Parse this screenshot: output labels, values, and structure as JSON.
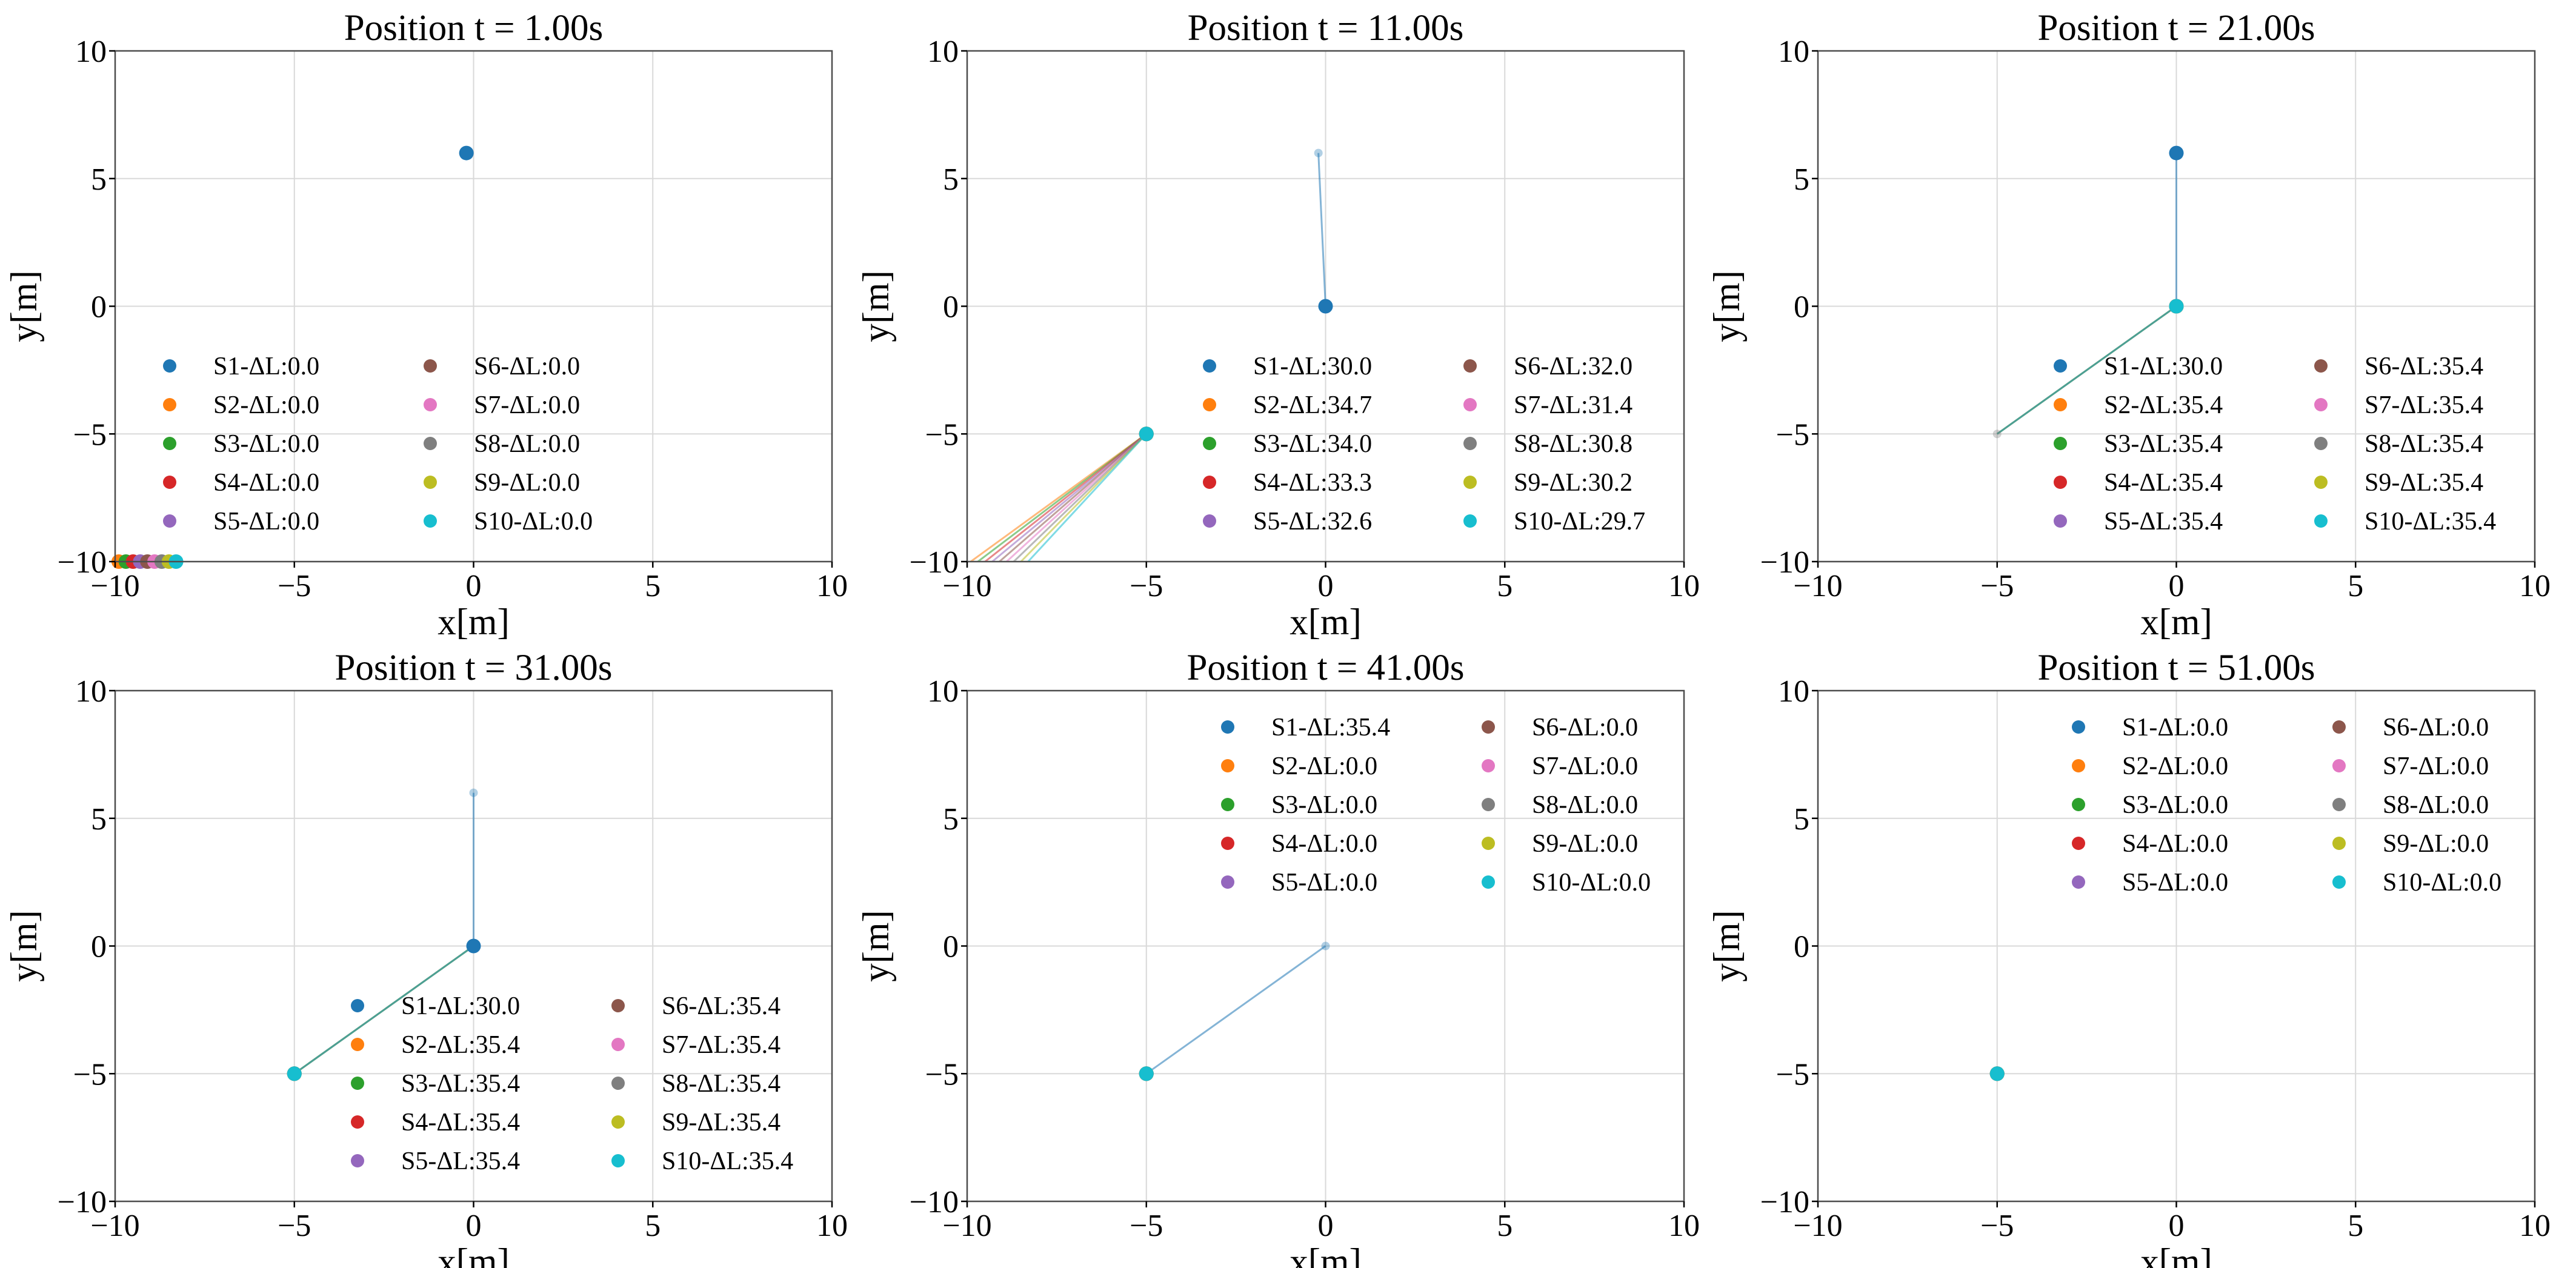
{
  "chart_data": [
    {
      "type": "scatter",
      "title": "Position t = 1.00s",
      "xlabel": "x[m]",
      "ylabel": "y[m]",
      "xlim": [
        -10,
        10
      ],
      "ylim": [
        -10,
        10
      ],
      "xticks": [
        -10,
        -5,
        0,
        5,
        10
      ],
      "yticks": [
        -10,
        -5,
        0,
        5,
        10
      ],
      "grid": true,
      "legend_position": "lower-left",
      "legend": [
        "S1-ΔL:0.0",
        "S2-ΔL:0.0",
        "S3-ΔL:0.0",
        "S4-ΔL:0.0",
        "S5-ΔL:0.0",
        "S6-ΔL:0.0",
        "S7-ΔL:0.0",
        "S8-ΔL:0.0",
        "S9-ΔL:0.0",
        "S10-ΔL:0.0"
      ],
      "points": [
        {
          "s": 1,
          "x": -0.2,
          "y": 6
        },
        {
          "s": 2,
          "x": -9.9,
          "y": -10
        },
        {
          "s": 3,
          "x": -9.7,
          "y": -10
        },
        {
          "s": 4,
          "x": -9.5,
          "y": -10
        },
        {
          "s": 5,
          "x": -9.3,
          "y": -10
        },
        {
          "s": 6,
          "x": -9.1,
          "y": -10
        },
        {
          "s": 7,
          "x": -8.9,
          "y": -10
        },
        {
          "s": 8,
          "x": -8.7,
          "y": -10
        },
        {
          "s": 9,
          "x": -8.5,
          "y": -10
        },
        {
          "s": 10,
          "x": -8.3,
          "y": -10
        }
      ],
      "segments": []
    },
    {
      "type": "scatter",
      "title": "Position t = 11.00s",
      "xlabel": "x[m]",
      "ylabel": "y[m]",
      "xlim": [
        -10,
        10
      ],
      "ylim": [
        -10,
        10
      ],
      "xticks": [
        -10,
        -5,
        0,
        5,
        10
      ],
      "yticks": [
        -10,
        -5,
        0,
        5,
        10
      ],
      "grid": true,
      "legend_position": "lower-right",
      "legend": [
        "S1-ΔL:30.0",
        "S2-ΔL:34.7",
        "S3-ΔL:34.0",
        "S4-ΔL:33.3",
        "S5-ΔL:32.6",
        "S6-ΔL:32.0",
        "S7-ΔL:31.4",
        "S8-ΔL:30.8",
        "S9-ΔL:30.2",
        "S10-ΔL:29.7"
      ],
      "points": [
        {
          "s": 1,
          "x": 0,
          "y": 0
        },
        {
          "s": 2,
          "x": -5,
          "y": -5
        },
        {
          "s": 3,
          "x": -5,
          "y": -5
        },
        {
          "s": 4,
          "x": -5,
          "y": -5
        },
        {
          "s": 5,
          "x": -5,
          "y": -5
        },
        {
          "s": 6,
          "x": -5,
          "y": -5
        },
        {
          "s": 7,
          "x": -5,
          "y": -5
        },
        {
          "s": 8,
          "x": -5,
          "y": -5
        },
        {
          "s": 9,
          "x": -5,
          "y": -5
        },
        {
          "s": 10,
          "x": -5,
          "y": -5
        }
      ],
      "ghost_points": [
        {
          "s": 1,
          "x": -0.2,
          "y": 6
        }
      ],
      "segments": [
        {
          "s": 1,
          "x1": -0.2,
          "y1": 6,
          "x2": 0,
          "y2": 0
        },
        {
          "s": 2,
          "x1": -9.9,
          "y1": -10,
          "x2": -5,
          "y2": -5
        },
        {
          "s": 3,
          "x1": -9.7,
          "y1": -10,
          "x2": -5,
          "y2": -5
        },
        {
          "s": 4,
          "x1": -9.5,
          "y1": -10,
          "x2": -5,
          "y2": -5
        },
        {
          "s": 5,
          "x1": -9.3,
          "y1": -10,
          "x2": -5,
          "y2": -5
        },
        {
          "s": 6,
          "x1": -9.1,
          "y1": -10,
          "x2": -5,
          "y2": -5
        },
        {
          "s": 7,
          "x1": -8.9,
          "y1": -10,
          "x2": -5,
          "y2": -5
        },
        {
          "s": 8,
          "x1": -8.7,
          "y1": -10,
          "x2": -5,
          "y2": -5
        },
        {
          "s": 9,
          "x1": -8.5,
          "y1": -10,
          "x2": -5,
          "y2": -5
        },
        {
          "s": 10,
          "x1": -8.3,
          "y1": -10,
          "x2": -5,
          "y2": -5
        }
      ]
    },
    {
      "type": "scatter",
      "title": "Position t = 21.00s",
      "xlabel": "x[m]",
      "ylabel": "y[m]",
      "xlim": [
        -10,
        10
      ],
      "ylim": [
        -10,
        10
      ],
      "xticks": [
        -10,
        -5,
        0,
        5,
        10
      ],
      "yticks": [
        -10,
        -5,
        0,
        5,
        10
      ],
      "grid": true,
      "legend_position": "lower-right",
      "legend": [
        "S1-ΔL:30.0",
        "S2-ΔL:35.4",
        "S3-ΔL:35.4",
        "S4-ΔL:35.4",
        "S5-ΔL:35.4",
        "S6-ΔL:35.4",
        "S7-ΔL:35.4",
        "S8-ΔL:35.4",
        "S9-ΔL:35.4",
        "S10-ΔL:35.4"
      ],
      "points": [
        {
          "s": 1,
          "x": 0,
          "y": 6
        },
        {
          "s": 2,
          "x": 0,
          "y": 0
        },
        {
          "s": 3,
          "x": 0,
          "y": 0
        },
        {
          "s": 4,
          "x": 0,
          "y": 0
        },
        {
          "s": 5,
          "x": 0,
          "y": 0
        },
        {
          "s": 6,
          "x": 0,
          "y": 0
        },
        {
          "s": 7,
          "x": 0,
          "y": 0
        },
        {
          "s": 8,
          "x": 0,
          "y": 0
        },
        {
          "s": 9,
          "x": 0,
          "y": 0
        },
        {
          "s": 10,
          "x": 0,
          "y": 0
        }
      ],
      "ghost_points": [
        {
          "s": 8,
          "x": -5,
          "y": -5
        }
      ],
      "segments": [
        {
          "s": 1,
          "x1": 0,
          "y1": 0,
          "x2": 0,
          "y2": 6
        },
        {
          "s": 2,
          "x1": -5,
          "y1": -5,
          "x2": 0,
          "y2": 0
        },
        {
          "s": 3,
          "x1": -5,
          "y1": -5,
          "x2": 0,
          "y2": 0
        },
        {
          "s": 6,
          "x1": -5,
          "y1": -5,
          "x2": 0,
          "y2": 0
        },
        {
          "s": 10,
          "x1": -5,
          "y1": -5,
          "x2": 0,
          "y2": 0
        }
      ]
    },
    {
      "type": "scatter",
      "title": "Position t = 31.00s",
      "xlabel": "x[m]",
      "ylabel": "y[m]",
      "xlim": [
        -10,
        10
      ],
      "ylim": [
        -10,
        10
      ],
      "xticks": [
        -10,
        -5,
        0,
        5,
        10
      ],
      "yticks": [
        -10,
        -5,
        0,
        5,
        10
      ],
      "grid": true,
      "legend_position": "lower-right",
      "legend": [
        "S1-ΔL:30.0",
        "S2-ΔL:35.4",
        "S3-ΔL:35.4",
        "S4-ΔL:35.4",
        "S5-ΔL:35.4",
        "S6-ΔL:35.4",
        "S7-ΔL:35.4",
        "S8-ΔL:35.4",
        "S9-ΔL:35.4",
        "S10-ΔL:35.4"
      ],
      "points": [
        {
          "s": 1,
          "x": 0,
          "y": 0
        },
        {
          "s": 2,
          "x": -5,
          "y": -5
        },
        {
          "s": 3,
          "x": -5,
          "y": -5
        },
        {
          "s": 4,
          "x": -5,
          "y": -5
        },
        {
          "s": 5,
          "x": -5,
          "y": -5
        },
        {
          "s": 6,
          "x": -5,
          "y": -5
        },
        {
          "s": 7,
          "x": -5,
          "y": -5
        },
        {
          "s": 8,
          "x": -5,
          "y": -5
        },
        {
          "s": 9,
          "x": -5,
          "y": -5
        },
        {
          "s": 10,
          "x": -5,
          "y": -5
        }
      ],
      "ghost_points": [
        {
          "s": 1,
          "x": 0,
          "y": 6
        }
      ],
      "segments": [
        {
          "s": 1,
          "x1": 0,
          "y1": 6,
          "x2": 0,
          "y2": 0
        },
        {
          "s": 2,
          "x1": 0,
          "y1": 0,
          "x2": -5,
          "y2": -5
        },
        {
          "s": 3,
          "x1": 0,
          "y1": 0,
          "x2": -5,
          "y2": -5
        },
        {
          "s": 6,
          "x1": 0,
          "y1": 0,
          "x2": -5,
          "y2": -5
        },
        {
          "s": 10,
          "x1": 0,
          "y1": 0,
          "x2": -5,
          "y2": -5
        }
      ]
    },
    {
      "type": "scatter",
      "title": "Position t = 41.00s",
      "xlabel": "x[m]",
      "ylabel": "y[m]",
      "xlim": [
        -10,
        10
      ],
      "ylim": [
        -10,
        10
      ],
      "xticks": [
        -10,
        -5,
        0,
        5,
        10
      ],
      "yticks": [
        -10,
        -5,
        0,
        5,
        10
      ],
      "grid": true,
      "legend_position": "upper-right",
      "legend": [
        "S1-ΔL:35.4",
        "S2-ΔL:0.0",
        "S3-ΔL:0.0",
        "S4-ΔL:0.0",
        "S5-ΔL:0.0",
        "S6-ΔL:0.0",
        "S7-ΔL:0.0",
        "S8-ΔL:0.0",
        "S9-ΔL:0.0",
        "S10-ΔL:0.0"
      ],
      "points": [
        {
          "s": 1,
          "x": -5,
          "y": -5
        },
        {
          "s": 2,
          "x": -5,
          "y": -5
        },
        {
          "s": 3,
          "x": -5,
          "y": -5
        },
        {
          "s": 4,
          "x": -5,
          "y": -5
        },
        {
          "s": 5,
          "x": -5,
          "y": -5
        },
        {
          "s": 6,
          "x": -5,
          "y": -5
        },
        {
          "s": 7,
          "x": -5,
          "y": -5
        },
        {
          "s": 8,
          "x": -5,
          "y": -5
        },
        {
          "s": 9,
          "x": -5,
          "y": -5
        },
        {
          "s": 10,
          "x": -5,
          "y": -5
        }
      ],
      "ghost_points": [
        {
          "s": 1,
          "x": 0,
          "y": 0
        }
      ],
      "segments": [
        {
          "s": 1,
          "x1": 0,
          "y1": 0,
          "x2": -5,
          "y2": -5
        }
      ]
    },
    {
      "type": "scatter",
      "title": "Position t = 51.00s",
      "xlabel": "x[m]",
      "ylabel": "y[m]",
      "xlim": [
        -10,
        10
      ],
      "ylim": [
        -10,
        10
      ],
      "xticks": [
        -10,
        -5,
        0,
        5,
        10
      ],
      "yticks": [
        -10,
        -5,
        0,
        5,
        10
      ],
      "grid": true,
      "legend_position": "upper-right",
      "legend": [
        "S1-ΔL:0.0",
        "S2-ΔL:0.0",
        "S3-ΔL:0.0",
        "S4-ΔL:0.0",
        "S5-ΔL:0.0",
        "S6-ΔL:0.0",
        "S7-ΔL:0.0",
        "S8-ΔL:0.0",
        "S9-ΔL:0.0",
        "S10-ΔL:0.0"
      ],
      "points": [
        {
          "s": 1,
          "x": -5,
          "y": -5
        },
        {
          "s": 2,
          "x": -5,
          "y": -5
        },
        {
          "s": 3,
          "x": -5,
          "y": -5
        },
        {
          "s": 4,
          "x": -5,
          "y": -5
        },
        {
          "s": 5,
          "x": -5,
          "y": -5
        },
        {
          "s": 6,
          "x": -5,
          "y": -5
        },
        {
          "s": 7,
          "x": -5,
          "y": -5
        },
        {
          "s": 8,
          "x": -5,
          "y": -5
        },
        {
          "s": 9,
          "x": -5,
          "y": -5
        },
        {
          "s": 10,
          "x": -5,
          "y": -5
        }
      ],
      "segments": []
    }
  ],
  "series_colors": [
    "#1f77b4",
    "#ff7f0e",
    "#2ca02c",
    "#d62728",
    "#9467bd",
    "#8c564b",
    "#e377c2",
    "#7f7f7f",
    "#bcbd22",
    "#17becf"
  ]
}
